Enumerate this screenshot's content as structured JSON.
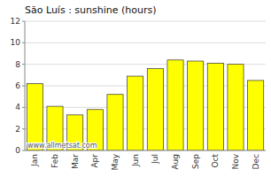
{
  "chart_data": {
    "type": "bar",
    "title": "São Luís : sunshine (hours)",
    "categories": [
      "Jan",
      "Feb",
      "Mar",
      "Apr",
      "May",
      "Jun",
      "Jul",
      "Aug",
      "Sep",
      "Oct",
      "Nov",
      "Dec"
    ],
    "values": [
      6.2,
      4.1,
      3.3,
      3.8,
      5.2,
      6.9,
      7.6,
      8.4,
      8.3,
      8.1,
      8.0,
      6.5
    ],
    "color": "#FFFF00",
    "ylim": [
      0,
      12
    ],
    "yticks": [
      0,
      2,
      4,
      6,
      8,
      10,
      12
    ],
    "grid": true,
    "annotations": [
      "www.allmetsat.com"
    ]
  }
}
